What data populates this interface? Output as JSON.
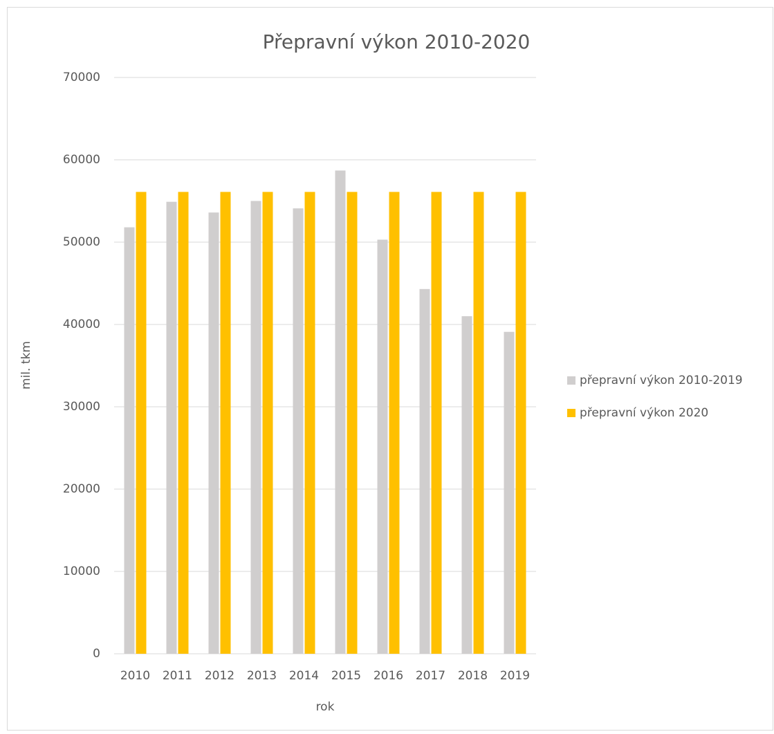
{
  "chart_data": {
    "type": "bar",
    "title": "Přepravní výkon 2010-2020",
    "x_label": "rok",
    "y_label": "mil. tkm",
    "categories": [
      "2010",
      "2011",
      "2012",
      "2013",
      "2014",
      "2015",
      "2016",
      "2017",
      "2018",
      "2019"
    ],
    "series": [
      {
        "name": "přepravní výkon 2010-2019",
        "color": "#d0cece",
        "values": [
          51800,
          54900,
          53600,
          55000,
          54100,
          58700,
          50300,
          44300,
          41000,
          39100
        ]
      },
      {
        "name": "přepravní výkon 2020",
        "color": "#ffc000",
        "values": [
          56100,
          56100,
          56100,
          56100,
          56100,
          56100,
          56100,
          56100,
          56100,
          56100
        ]
      }
    ],
    "ylim": [
      0,
      70000
    ],
    "yticks": [
      0,
      10000,
      20000,
      30000,
      40000,
      50000,
      60000,
      70000
    ],
    "grid": true,
    "legend": "right"
  }
}
